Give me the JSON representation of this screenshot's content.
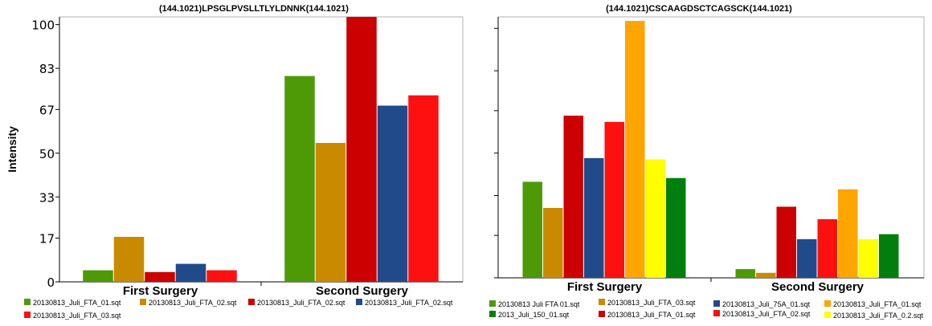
{
  "chart_data": [
    {
      "type": "bar",
      "title": "(144.1021)LPSGLPVSLLTLYLDNNK(144.1021)",
      "xlabel": "",
      "ylabel": "Intensity",
      "ylim": [
        0,
        103
      ],
      "yticks": [
        "0",
        "17",
        "33",
        "50",
        "67",
        "83",
        "100"
      ],
      "categories": [
        "First Surgery",
        "Second Surgery"
      ],
      "series": [
        {
          "name": "20130813_Juli_FTA_01.sqt",
          "color": "#4e9a06",
          "values": [
            4.5,
            80
          ]
        },
        {
          "name": "20130813_Juli_FTA_02.sqt",
          "color": "#c98a00",
          "values": [
            17.5,
            54
          ]
        },
        {
          "name": "20130813_Juli_FTA_02.sqt",
          "color": "#cc0000",
          "values": [
            3.8,
            103
          ]
        },
        {
          "name": "20130813_Juli_FTA_02.sqt",
          "color": "#204a8a",
          "values": [
            7,
            68.5
          ]
        },
        {
          "name": "20130813_Juli_FTA_03.sqt",
          "color": "#ff1010",
          "values": [
            4.5,
            72.5
          ]
        }
      ]
    },
    {
      "type": "bar",
      "title": "(144.1021)CSCAAGDSCTCAGSCK(144.1021)",
      "xlabel": "",
      "ylabel": "",
      "ylim": [
        0,
        103
      ],
      "categories": [
        "First Surgery",
        "Second Surgery"
      ],
      "series": [
        {
          "name": "20130813_Juli_FTA_01.sqt",
          "color": "#4e9a06",
          "values": [
            38.5,
            3.5
          ]
        },
        {
          "name": "20130813_Juli_FTA_03.sqt",
          "color": "#c98a00",
          "values": [
            28,
            2
          ]
        },
        {
          "name": "20130813_Juli_FTA_01.sqt",
          "color": "#cc0000",
          "values": [
            65,
            28.5
          ]
        },
        {
          "name": "20130813_Juli_75A_01.sqt",
          "color": "#204a8a",
          "values": [
            48,
            15.5
          ]
        },
        {
          "name": "20130813_Juli_FTA_02.sqt",
          "color": "#ff1010",
          "values": [
            62.5,
            23.5
          ]
        },
        {
          "name": "20130813_Juli_FTA_01.sqt",
          "color": "#ffa500",
          "values": [
            103,
            35.5
          ]
        },
        {
          "name": "20130813_Juli_FTA_0.2.sqt",
          "color": "#ffff00",
          "values": [
            47.5,
            15.5
          ]
        },
        {
          "name": "2013_Juli_150_01.sqt",
          "color": "#007f0e",
          "values": [
            40,
            17.5
          ]
        }
      ],
      "legend_order": [
        0,
        1,
        3,
        5,
        7,
        2,
        4,
        6
      ],
      "legend_labels": {
        "0": "20130813  Juli  FTA  01.sqt",
        "1": "20130813_Juli_FTA_03.sqt",
        "3": "20130813_Juli_75A_01.sqt",
        "5": "20130813_Juli_FTA_01.sqt",
        "7": "2013_Juli_150_01.sqt",
        "2": "20130813_Juli_FTA_01.sqt",
        "4": "20130813_Juli_FTA_02.sqt",
        "6": "20130813_Juli_FTA_0.2.sqt"
      }
    }
  ]
}
